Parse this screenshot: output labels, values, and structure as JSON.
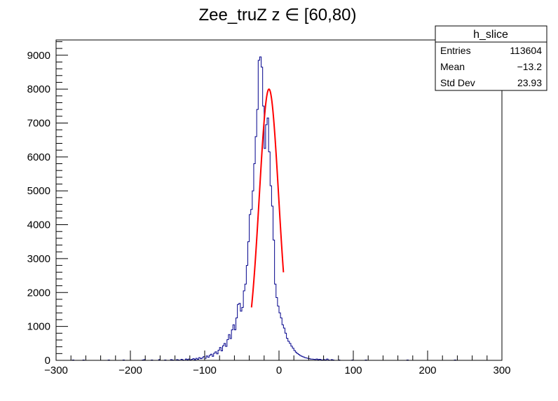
{
  "chart_data": {
    "type": "histogram",
    "title": "Zee_truZ z  ∈ [60,80)",
    "xlabel": "",
    "ylabel": "",
    "xlim": [
      -300,
      300
    ],
    "ylim": [
      0,
      9450
    ],
    "x_ticks": [
      -300,
      -200,
      -100,
      0,
      100,
      200,
      300
    ],
    "x_tick_labels": [
      "−300",
      "−200",
      "−100",
      "0",
      "100",
      "200",
      "300"
    ],
    "y_ticks": [
      0,
      1000,
      2000,
      3000,
      4000,
      5000,
      6000,
      7000,
      8000,
      9000
    ],
    "y_tick_labels": [
      "0",
      "1000",
      "2000",
      "3000",
      "4000",
      "5000",
      "6000",
      "7000",
      "8000",
      "9000"
    ],
    "grid": false,
    "series": [
      {
        "kind": "histogram",
        "color": "#00008b",
        "bin_width": 2,
        "bins": [
          [
            -300,
            0
          ],
          [
            -278,
            10
          ],
          [
            -276,
            0
          ],
          [
            -264,
            10
          ],
          [
            -262,
            0
          ],
          [
            -230,
            10
          ],
          [
            -228,
            0
          ],
          [
            -210,
            10
          ],
          [
            -208,
            0
          ],
          [
            -184,
            10
          ],
          [
            -182,
            20
          ],
          [
            -180,
            0
          ],
          [
            -172,
            10
          ],
          [
            -170,
            0
          ],
          [
            -162,
            20
          ],
          [
            -160,
            0
          ],
          [
            -154,
            10
          ],
          [
            -152,
            0
          ],
          [
            -146,
            20
          ],
          [
            -144,
            10
          ],
          [
            -142,
            0
          ],
          [
            -138,
            20
          ],
          [
            -136,
            10
          ],
          [
            -134,
            0
          ],
          [
            -132,
            30
          ],
          [
            -130,
            10
          ],
          [
            -128,
            0
          ],
          [
            -126,
            40
          ],
          [
            -124,
            20
          ],
          [
            -122,
            40
          ],
          [
            -120,
            10
          ],
          [
            -118,
            30
          ],
          [
            -116,
            50
          ],
          [
            -114,
            20
          ],
          [
            -112,
            60
          ],
          [
            -110,
            30
          ],
          [
            -108,
            80
          ],
          [
            -106,
            50
          ],
          [
            -104,
            70
          ],
          [
            -102,
            110
          ],
          [
            -100,
            60
          ],
          [
            -98,
            130
          ],
          [
            -96,
            90
          ],
          [
            -94,
            150
          ],
          [
            -92,
            180
          ],
          [
            -90,
            120
          ],
          [
            -88,
            210
          ],
          [
            -86,
            250
          ],
          [
            -84,
            190
          ],
          [
            -82,
            300
          ],
          [
            -80,
            380
          ],
          [
            -78,
            280
          ],
          [
            -76,
            430
          ],
          [
            -74,
            500
          ],
          [
            -72,
            410
          ],
          [
            -70,
            610
          ],
          [
            -68,
            760
          ],
          [
            -66,
            640
          ],
          [
            -64,
            900
          ],
          [
            -62,
            1050
          ],
          [
            -60,
            900
          ],
          [
            -58,
            1250
          ],
          [
            -56,
            1650
          ],
          [
            -54,
            1680
          ],
          [
            -52,
            1450
          ],
          [
            -50,
            1560
          ],
          [
            -48,
            2050
          ],
          [
            -46,
            2250
          ],
          [
            -44,
            2800
          ],
          [
            -42,
            3500
          ],
          [
            -40,
            4300
          ],
          [
            -38,
            4450
          ],
          [
            -36,
            5000
          ],
          [
            -34,
            5800
          ],
          [
            -32,
            6600
          ],
          [
            -30,
            7400
          ],
          [
            -28,
            8850
          ],
          [
            -26,
            8950
          ],
          [
            -24,
            8650
          ],
          [
            -22,
            7500
          ],
          [
            -20,
            6250
          ],
          [
            -18,
            6950
          ],
          [
            -16,
            7150
          ],
          [
            -14,
            6150
          ],
          [
            -12,
            5150
          ],
          [
            -10,
            4550
          ],
          [
            -8,
            3550
          ],
          [
            -6,
            2250
          ],
          [
            -4,
            1850
          ],
          [
            -2,
            1600
          ],
          [
            0,
            1400
          ],
          [
            2,
            1250
          ],
          [
            4,
            1050
          ],
          [
            6,
            950
          ],
          [
            8,
            800
          ],
          [
            10,
            650
          ],
          [
            12,
            560
          ],
          [
            14,
            500
          ],
          [
            16,
            420
          ],
          [
            18,
            360
          ],
          [
            20,
            290
          ],
          [
            22,
            240
          ],
          [
            24,
            200
          ],
          [
            26,
            170
          ],
          [
            28,
            140
          ],
          [
            30,
            120
          ],
          [
            32,
            100
          ],
          [
            34,
            80
          ],
          [
            36,
            70
          ],
          [
            38,
            60
          ],
          [
            40,
            50
          ],
          [
            42,
            40
          ],
          [
            44,
            35
          ],
          [
            46,
            30
          ],
          [
            48,
            25
          ],
          [
            50,
            40
          ],
          [
            52,
            20
          ],
          [
            54,
            30
          ],
          [
            56,
            15
          ],
          [
            58,
            10
          ],
          [
            60,
            20
          ],
          [
            62,
            10
          ],
          [
            64,
            40
          ],
          [
            66,
            10
          ],
          [
            68,
            0
          ],
          [
            70,
            20
          ],
          [
            72,
            10
          ],
          [
            74,
            0
          ],
          [
            80,
            10
          ],
          [
            82,
            0
          ],
          [
            98,
            10
          ],
          [
            100,
            0
          ],
          [
            116,
            10
          ],
          [
            118,
            0
          ],
          [
            172,
            10
          ],
          [
            174,
            0
          ],
          [
            236,
            10
          ],
          [
            238,
            0
          ],
          [
            300,
            0
          ]
        ]
      },
      {
        "kind": "fit",
        "color": "#ff0000",
        "function": "gaus",
        "constant": 8000,
        "mean": -13.5,
        "sigma": 13.0,
        "range": [
          -37,
          6
        ]
      }
    ],
    "stats_box": {
      "name": "h_slice",
      "position": "top-right",
      "rows": [
        {
          "label": "Entries",
          "value": "113604"
        },
        {
          "label": "Mean",
          "value": "−13.2"
        },
        {
          "label": "Std Dev",
          "value": "23.93"
        }
      ]
    }
  }
}
